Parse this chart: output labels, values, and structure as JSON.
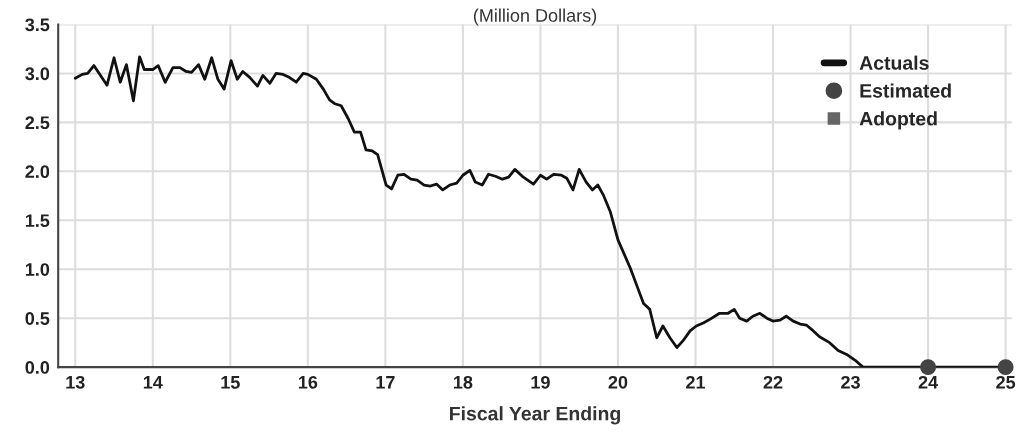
{
  "chart_data": {
    "type": "line",
    "title": "(Million Dollars)",
    "xlabel": "Fiscal Year Ending",
    "xlim": [
      12.78,
      25.08
    ],
    "xticks": [
      13,
      14,
      15,
      16,
      17,
      18,
      19,
      20,
      21,
      22,
      23,
      24,
      25
    ],
    "ylim": [
      0,
      3.5
    ],
    "yticks": [
      {
        "value": 0,
        "label": "0.0"
      },
      {
        "value": 0.5,
        "label": "0.5"
      },
      {
        "value": 1,
        "label": "1.0"
      },
      {
        "value": 1.5,
        "label": "1.5"
      },
      {
        "value": 2,
        "label": "2.0"
      },
      {
        "value": 2.5,
        "label": "2.5"
      },
      {
        "value": 3,
        "label": "3.0"
      },
      {
        "value": 3.5,
        "label": "3.5"
      }
    ],
    "grid": true,
    "legend": "top right",
    "series": [
      {
        "name": "Actuals",
        "color": "#111111",
        "marker": "none",
        "line_style": "solid",
        "x": [
          13.0,
          13.09,
          13.16,
          13.24,
          13.41,
          13.5,
          13.58,
          13.66,
          13.75,
          13.83,
          13.89,
          14.0,
          14.07,
          14.16,
          14.26,
          14.35,
          14.43,
          14.5,
          14.59,
          14.67,
          14.76,
          14.84,
          14.92,
          15.01,
          15.09,
          15.16,
          15.25,
          15.35,
          15.42,
          15.51,
          15.59,
          15.68,
          15.76,
          15.85,
          15.94,
          16.0,
          16.11,
          16.2,
          16.28,
          16.35,
          16.43,
          16.52,
          16.6,
          16.68,
          16.75,
          16.83,
          16.9,
          17.01,
          17.08,
          17.16,
          17.24,
          17.33,
          17.41,
          17.5,
          17.58,
          17.66,
          17.74,
          17.83,
          17.92,
          18.0,
          18.09,
          18.16,
          18.25,
          18.33,
          18.42,
          18.51,
          18.59,
          18.67,
          18.78,
          18.91,
          19.0,
          19.08,
          19.17,
          19.27,
          19.34,
          19.42,
          19.5,
          19.59,
          19.67,
          19.74,
          19.81,
          19.9,
          20.0,
          20.16,
          20.24,
          20.33,
          20.41,
          20.5,
          20.58,
          20.67,
          20.76,
          20.84,
          20.93,
          21.01,
          21.1,
          21.19,
          21.31,
          21.42,
          21.5,
          21.57,
          21.66,
          21.74,
          21.83,
          21.92,
          22.0,
          22.09,
          22.17,
          22.26,
          22.35,
          22.43,
          22.52,
          22.6,
          22.73,
          22.84,
          22.95,
          23.06,
          23.16,
          24.0,
          25.0
        ],
        "values": [
          2.95,
          2.99,
          3.0,
          3.08,
          2.88,
          3.16,
          2.91,
          3.09,
          2.72,
          3.17,
          3.04,
          3.04,
          3.08,
          2.91,
          3.06,
          3.06,
          3.02,
          3.01,
          3.09,
          2.94,
          3.16,
          2.94,
          2.84,
          3.13,
          2.94,
          3.02,
          2.96,
          2.87,
          2.98,
          2.9,
          3.0,
          2.99,
          2.96,
          2.91,
          3.0,
          2.99,
          2.94,
          2.84,
          2.73,
          2.69,
          2.67,
          2.54,
          2.4,
          2.4,
          2.22,
          2.21,
          2.17,
          1.86,
          1.82,
          1.96,
          1.97,
          1.92,
          1.91,
          1.86,
          1.85,
          1.87,
          1.81,
          1.86,
          1.88,
          1.96,
          2.01,
          1.89,
          1.86,
          1.97,
          1.95,
          1.92,
          1.94,
          2.02,
          1.94,
          1.87,
          1.96,
          1.92,
          1.97,
          1.96,
          1.93,
          1.81,
          2.02,
          1.89,
          1.81,
          1.86,
          1.76,
          1.59,
          1.3,
          1.01,
          0.84,
          0.65,
          0.59,
          0.3,
          0.42,
          0.3,
          0.2,
          0.27,
          0.37,
          0.42,
          0.45,
          0.49,
          0.55,
          0.55,
          0.59,
          0.5,
          0.47,
          0.52,
          0.55,
          0.5,
          0.47,
          0.48,
          0.52,
          0.47,
          0.44,
          0.43,
          0.37,
          0.31,
          0.25,
          0.17,
          0.13,
          0.07,
          0.0,
          0.0,
          0.0
        ]
      },
      {
        "name": "Estimated",
        "type": "scatter",
        "color": "#444444",
        "marker": "circle",
        "x": [
          24,
          25
        ],
        "values": [
          0,
          0
        ]
      },
      {
        "name": "Adopted",
        "type": "scatter",
        "color": "#666666",
        "marker": "square"
      }
    ]
  }
}
